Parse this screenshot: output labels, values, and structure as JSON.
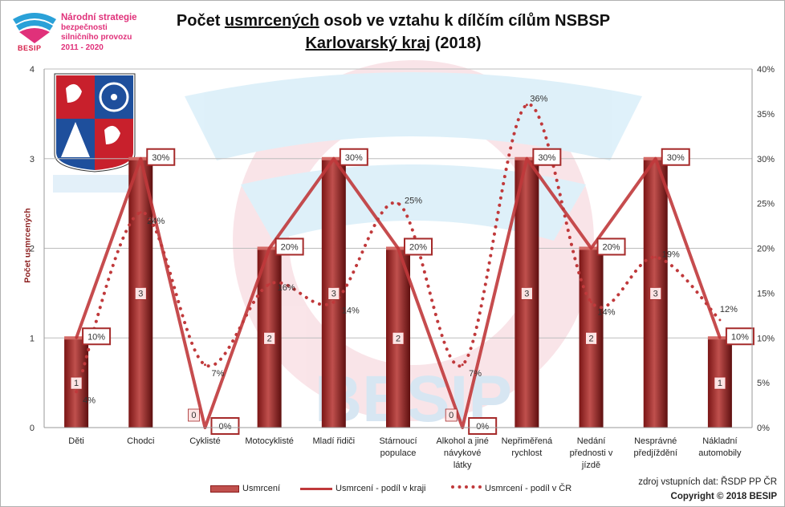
{
  "logo": {
    "line1": "Národní strategie",
    "line2": "bezpečnosti",
    "line3": "silničního provozu",
    "line4": "2011 - 2020",
    "brand": "BESIP"
  },
  "title": {
    "part1": "Počet ",
    "part2": "usmrcených",
    "part3": " osob ve vztahu k dílčím cílům NSBSP",
    "line2a": "Karlovarský kraj",
    "line2b": " (2018)"
  },
  "watermark": "BESIP",
  "legend": {
    "bars": "Usmrcení",
    "line_region": "Usmrcení - podíl v kraji",
    "line_cr": "Usmrcení - podíl v ČR"
  },
  "source": {
    "line1": "zdroj vstupních dat: ŘSDP PP ČR",
    "line2": "Copyright © 2018  BESIP"
  },
  "chart_data": {
    "type": "bar",
    "title": "Počet usmrcených osob ve vztahu k dílčím cílům NSBSP — Karlovarský kraj (2018)",
    "ylabel": "Počet usmrcených",
    "ylim": [
      0,
      4
    ],
    "y2lim": [
      0,
      40
    ],
    "yticks": [
      "0",
      "1",
      "2",
      "3",
      "4"
    ],
    "y2ticks": [
      "0%",
      "5%",
      "10%",
      "15%",
      "20%",
      "25%",
      "30%",
      "35%",
      "40%"
    ],
    "categories": [
      [
        "Děti"
      ],
      [
        "Chodci"
      ],
      [
        "Cyklisté"
      ],
      [
        "Motocyklisté"
      ],
      [
        "Mladí řidiči"
      ],
      [
        "Stárnoucí",
        "populace"
      ],
      [
        "Alkohol a jiné",
        "návykové",
        "látky"
      ],
      [
        "Nepřiměřená",
        "rychlost"
      ],
      [
        "Nedání",
        "přednosti v",
        "jízdě"
      ],
      [
        "Nesprávné",
        "předjíždění"
      ],
      [
        "Nákladní",
        "automobily"
      ]
    ],
    "series": [
      {
        "name": "Usmrcení",
        "kind": "bar",
        "axis": "left",
        "color": "#a52a2a",
        "values": [
          1,
          3,
          0,
          2,
          3,
          2,
          0,
          3,
          2,
          3,
          1
        ]
      },
      {
        "name": "Usmrcení - podíl v kraji",
        "kind": "line",
        "axis": "right",
        "color": "#c0393b",
        "values": [
          10,
          30,
          0,
          20,
          30,
          20,
          0,
          30,
          20,
          30,
          10
        ],
        "labels": [
          "10%",
          "30%",
          "0%",
          "20%",
          "30%",
          "20%",
          "0%",
          "30%",
          "20%",
          "30%",
          "10%"
        ]
      },
      {
        "name": "Usmrcení - podíl v ČR",
        "kind": "dotted",
        "axis": "right",
        "color": "#c0393b",
        "values": [
          4,
          24,
          7,
          16,
          14,
          25,
          7,
          36,
          14,
          19,
          12
        ],
        "labels": [
          "4%",
          "24%",
          "7%",
          "16%",
          "14%",
          "25%",
          "7%",
          "36%",
          "14%",
          "19%",
          "12%"
        ]
      }
    ],
    "bar_labels": [
      "1",
      "3",
      "0",
      "2",
      "3",
      "2",
      "0",
      "3",
      "2",
      "3",
      "1"
    ],
    "colors": {
      "bar_top": "#c0504d",
      "bar_dark": "#6b1212",
      "line": "#c0393b",
      "axis_text": "#333333",
      "ylabel": "#8b1c1c"
    }
  }
}
